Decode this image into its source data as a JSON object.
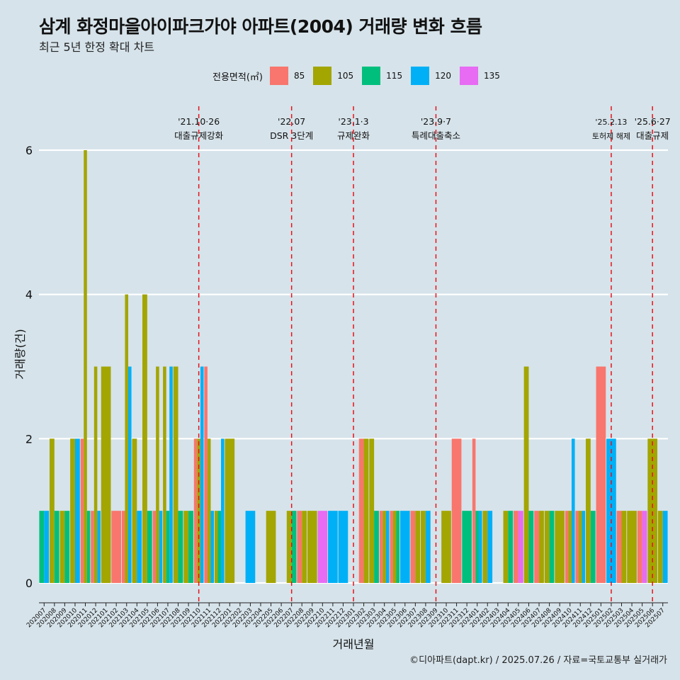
{
  "title": "삼계 화정마을아이파크가야 아파트(2004) 거래량 변화 흐름",
  "subtitle": "최근 5년 한정 확대 차트",
  "caption": "©디아파트(dapt.kr) / 2025.07.26 / 자료=국토교통부 실거래가",
  "legend": {
    "title": "전용면적(㎡)",
    "items": [
      {
        "label": "85",
        "color": "#f8766d"
      },
      {
        "label": "105",
        "color": "#a3a500"
      },
      {
        "label": "115",
        "color": "#00bf7d"
      },
      {
        "label": "120",
        "color": "#00b0f6"
      },
      {
        "label": "135",
        "color": "#e76bf3"
      }
    ]
  },
  "chart_data": {
    "type": "bar",
    "xlabel": "거래년월",
    "ylabel": "거래량(건)",
    "ylim": [
      0,
      6.5
    ],
    "yticks": [
      0,
      2,
      4,
      6
    ],
    "grid": true,
    "legend_position": "top",
    "series_names": [
      "85",
      "105",
      "115",
      "120",
      "135"
    ],
    "colors": [
      "#f8766d",
      "#a3a500",
      "#00bf7d",
      "#00b0f6",
      "#e76bf3"
    ],
    "months": [
      "202007",
      "202008",
      "202009",
      "202010",
      "202011",
      "202012",
      "202101",
      "202102",
      "202103",
      "202104",
      "202105",
      "202106",
      "202107",
      "202108",
      "202109",
      "202110",
      "202111",
      "202112",
      "202201",
      "202202",
      "202203",
      "202204",
      "202205",
      "202206",
      "202207",
      "202208",
      "202209",
      "202210",
      "202211",
      "202212",
      "202301",
      "202302",
      "202303",
      "202304",
      "202305",
      "202306",
      "202307",
      "202308",
      "202309",
      "202310",
      "202311",
      "202312",
      "202401",
      "202402",
      "202403",
      "202404",
      "202405",
      "202406",
      "202407",
      "202408",
      "202409",
      "202410",
      "202411",
      "202412",
      "202501",
      "202502",
      "202503",
      "202504",
      "202505",
      "202506",
      "202507"
    ],
    "values": [
      [
        0,
        0,
        1,
        1,
        0
      ],
      [
        0,
        2,
        1,
        0,
        0
      ],
      [
        0,
        1,
        1,
        0,
        0
      ],
      [
        0,
        2,
        0,
        2,
        0
      ],
      [
        2,
        6,
        1,
        0,
        0
      ],
      [
        1,
        3,
        0,
        1,
        0
      ],
      [
        0,
        3,
        0,
        0,
        0
      ],
      [
        1,
        0,
        0,
        0,
        0
      ],
      [
        1,
        4,
        0,
        3,
        0
      ],
      [
        0,
        2,
        0,
        1,
        0
      ],
      [
        0,
        4,
        1,
        0,
        0
      ],
      [
        1,
        3,
        0,
        1,
        0
      ],
      [
        0,
        3,
        1,
        3,
        0
      ],
      [
        0,
        3,
        1,
        0,
        0
      ],
      [
        0,
        1,
        1,
        0,
        0
      ],
      [
        2,
        2,
        0,
        3,
        0
      ],
      [
        3,
        2,
        0,
        1,
        0
      ],
      [
        0,
        1,
        1,
        2,
        0
      ],
      [
        0,
        2,
        0,
        0,
        0
      ],
      [
        0,
        0,
        0,
        0,
        0
      ],
      [
        0,
        0,
        0,
        1,
        0
      ],
      [
        0,
        0,
        0,
        0,
        0
      ],
      [
        0,
        1,
        0,
        0,
        0
      ],
      [
        0,
        0,
        0,
        0,
        0
      ],
      [
        0,
        1,
        1,
        0,
        0
      ],
      [
        1,
        1,
        0,
        0,
        0
      ],
      [
        0,
        1,
        0,
        0,
        0
      ],
      [
        0,
        0,
        0,
        0,
        1
      ],
      [
        0,
        0,
        0,
        1,
        0
      ],
      [
        0,
        0,
        0,
        1,
        0
      ],
      [
        0,
        0,
        0,
        0,
        0
      ],
      [
        2,
        2,
        0,
        0,
        0
      ],
      [
        0,
        2,
        1,
        0,
        0
      ],
      [
        1,
        1,
        0,
        1,
        0
      ],
      [
        1,
        1,
        1,
        0,
        0
      ],
      [
        0,
        0,
        0,
        1,
        0
      ],
      [
        1,
        1,
        0,
        0,
        0
      ],
      [
        0,
        1,
        0,
        1,
        0
      ],
      [
        0,
        0,
        0,
        0,
        0
      ],
      [
        0,
        1,
        0,
        0,
        0
      ],
      [
        2,
        0,
        0,
        0,
        0
      ],
      [
        0,
        0,
        1,
        0,
        0
      ],
      [
        2,
        0,
        1,
        1,
        0
      ],
      [
        0,
        1,
        0,
        1,
        0
      ],
      [
        0,
        0,
        0,
        0,
        0
      ],
      [
        0,
        1,
        1,
        0,
        0
      ],
      [
        1,
        0,
        0,
        0,
        1
      ],
      [
        0,
        3,
        1,
        0,
        0
      ],
      [
        1,
        1,
        0,
        0,
        0
      ],
      [
        0,
        1,
        1,
        0,
        0
      ],
      [
        0,
        1,
        0,
        0,
        0
      ],
      [
        1,
        1,
        0,
        2,
        0
      ],
      [
        1,
        1,
        0,
        1,
        0
      ],
      [
        0,
        2,
        1,
        0,
        0
      ],
      [
        3,
        0,
        0,
        0,
        0
      ],
      [
        0,
        0,
        0,
        2,
        0
      ],
      [
        1,
        1,
        0,
        0,
        0
      ],
      [
        0,
        1,
        0,
        0,
        0
      ],
      [
        1,
        0,
        0,
        0,
        1
      ],
      [
        0,
        2,
        0,
        0,
        0
      ],
      [
        0,
        1,
        0,
        1,
        0
      ]
    ],
    "events": [
      {
        "month": "202110",
        "date": "'21.10·26",
        "label": "대출규제강화"
      },
      {
        "month": "202207",
        "date": "'22.07",
        "label": "DSR 3단계"
      },
      {
        "month": "202301",
        "date": "'23.1·3",
        "label": "규제완화"
      },
      {
        "month": "202309",
        "date": "'23.9·7",
        "label": "특례대출축소"
      },
      {
        "month": "202502",
        "date": "'25.2.13",
        "label": "토허제 해제"
      },
      {
        "month": "202506",
        "date": "'25.6·27",
        "label": "대출규제"
      }
    ]
  }
}
